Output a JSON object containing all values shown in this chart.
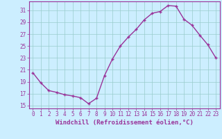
{
  "x": [
    0,
    1,
    2,
    3,
    4,
    5,
    6,
    7,
    8,
    9,
    10,
    11,
    12,
    13,
    14,
    15,
    16,
    17,
    18,
    19,
    20,
    21,
    22,
    23
  ],
  "y": [
    20.5,
    18.8,
    17.5,
    17.2,
    16.8,
    16.6,
    16.3,
    15.3,
    16.2,
    20.0,
    22.8,
    25.0,
    26.5,
    27.8,
    29.4,
    30.5,
    30.8,
    31.8,
    31.7,
    29.5,
    28.5,
    26.8,
    25.2,
    23.0
  ],
  "line_color": "#993399",
  "marker": "+",
  "marker_size": 3,
  "line_width": 1.0,
  "xlabel": "Windchill (Refroidissement éolien,°C)",
  "ylabel": "",
  "xlim": [
    -0.5,
    23.5
  ],
  "ylim": [
    14.5,
    32.5
  ],
  "yticks": [
    15,
    17,
    19,
    21,
    23,
    25,
    27,
    29,
    31
  ],
  "xticks": [
    0,
    1,
    2,
    3,
    4,
    5,
    6,
    7,
    8,
    9,
    10,
    11,
    12,
    13,
    14,
    15,
    16,
    17,
    18,
    19,
    20,
    21,
    22,
    23
  ],
  "bg_color": "#cceeff",
  "grid_color": "#99cccc",
  "line_border_color": "#993399",
  "tick_color": "#993399",
  "label_color": "#993399",
  "tick_fontsize": 5.5,
  "xlabel_fontsize": 6.5
}
